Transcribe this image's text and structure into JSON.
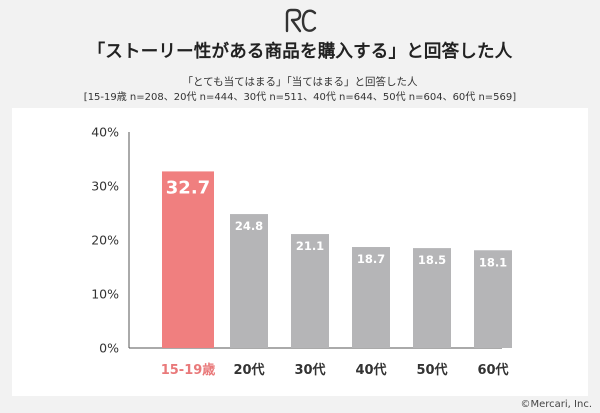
{
  "header": {
    "title": "「ストーリー性がある商品を購入する」と回答した人",
    "subtitle": "「とても当てはまる」「当てはまる」と回答した人",
    "sample": "[15-19歳 n=208、20代 n=444、30代 n=511、40代 n=644、50代 n=604、60代 n=569]"
  },
  "footer": {
    "copyright": "©Mercari, Inc."
  },
  "chart_data": {
    "type": "bar",
    "categories": [
      "15-19歳",
      "20代",
      "30代",
      "40代",
      "50代",
      "60代"
    ],
    "values": [
      32.7,
      24.8,
      21.1,
      18.7,
      18.5,
      18.1
    ],
    "value_labels": [
      "32.7",
      "24.8",
      "21.1",
      "18.7",
      "18.5",
      "18.1"
    ],
    "y_ticks": [
      "0%",
      "10%",
      "20%",
      "30%",
      "40%"
    ],
    "ylim": [
      0,
      40
    ],
    "grid": false,
    "colors": {
      "highlight": "#f07f7f",
      "default": "#b5b5b7",
      "highlight_label": "#e9797a",
      "axis": "#555555"
    },
    "highlight_index": 0
  }
}
